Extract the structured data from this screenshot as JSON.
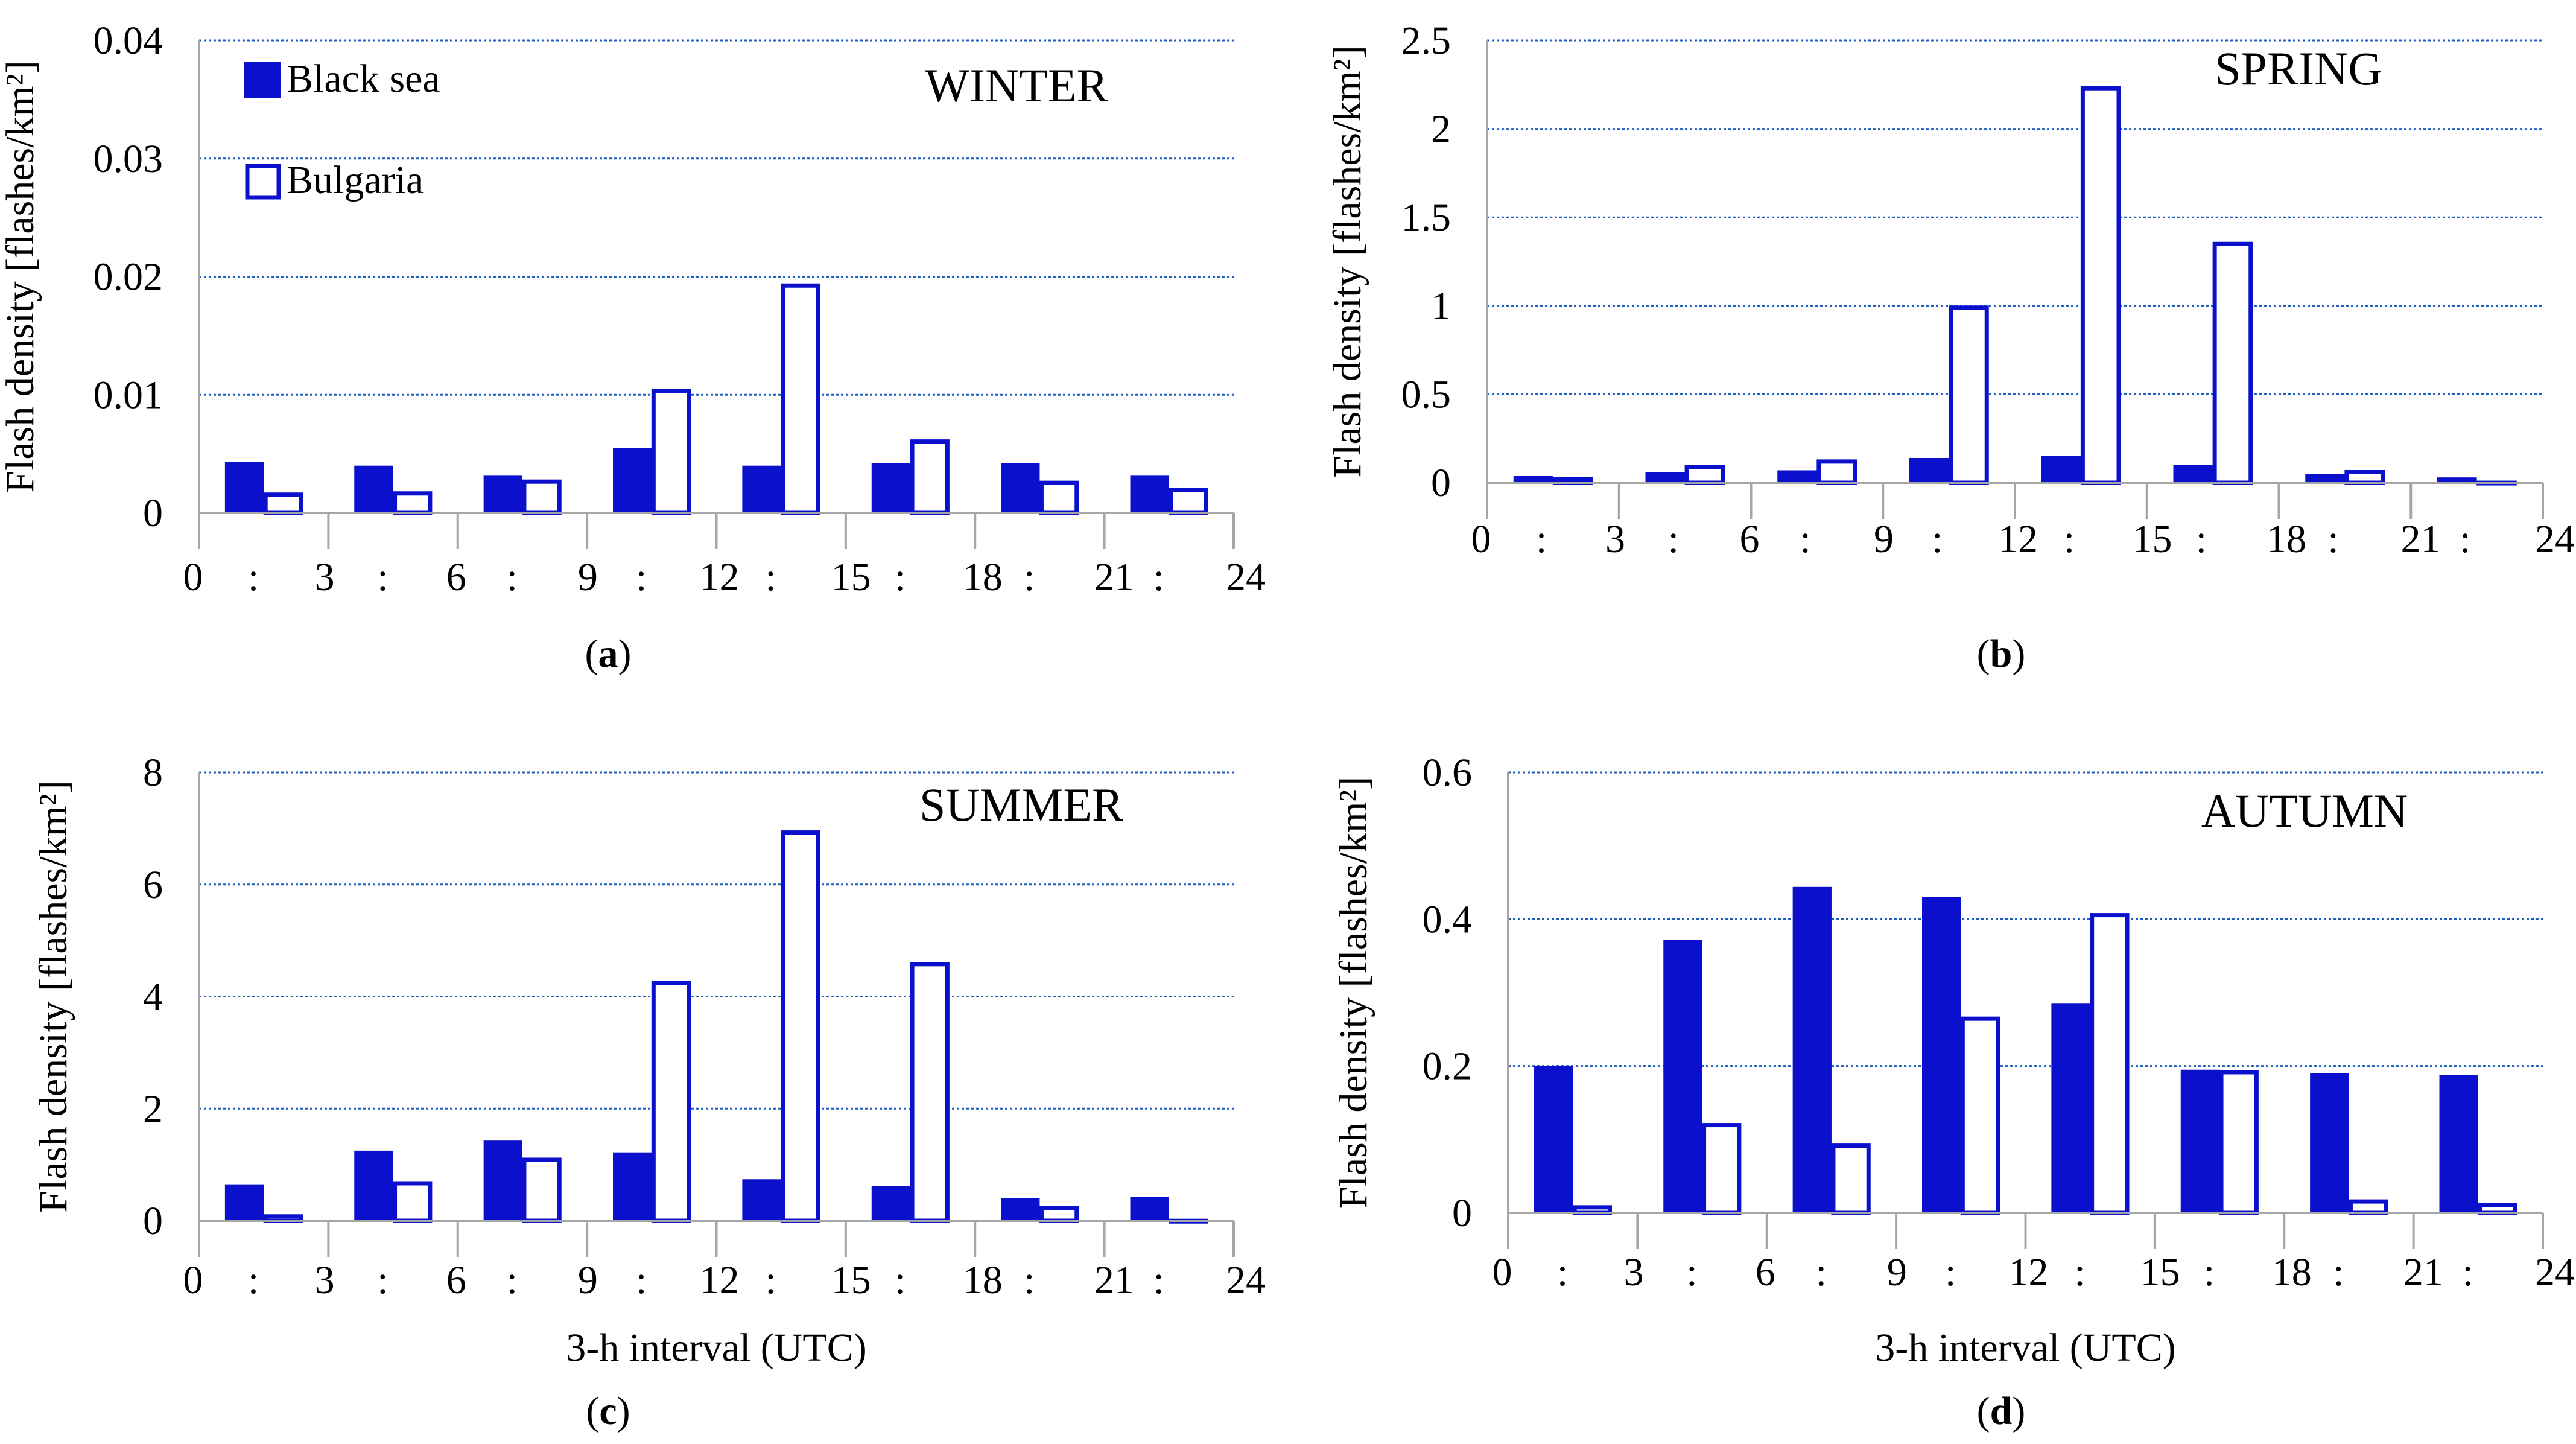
{
  "colors": {
    "black_sea": "#0b10cc",
    "bulgaria_fill": "#ffffff",
    "bulgaria_stroke": "#0b10cc",
    "grid": "#1f5fbf",
    "axis": "#a6a6a6"
  },
  "legend": {
    "black_sea": "Black sea",
    "bulgaria": "Bulgaria"
  },
  "chart_data": [
    {
      "id": "a",
      "type": "bar",
      "season": "WINTER",
      "ylabel": "Flash density [flashes/km²]",
      "xlabel": "",
      "caption_letter": "a",
      "yticks": [
        "0",
        "0.01",
        "0.02",
        "0.03",
        "0.04"
      ],
      "ylim": [
        0,
        0.04
      ],
      "xticks": [
        "0",
        "3",
        "6",
        "9",
        "12",
        "15",
        "18",
        "21",
        "24"
      ],
      "series": [
        {
          "name": "Black sea",
          "values": [
            0.0043,
            0.004,
            0.0032,
            0.0055,
            0.004,
            0.0042,
            0.0042,
            0.0032
          ]
        },
        {
          "name": "Bulgaria",
          "values": [
            0.0017,
            0.0018,
            0.0028,
            0.0105,
            0.0194,
            0.0062,
            0.0027,
            0.0021
          ]
        }
      ]
    },
    {
      "id": "b",
      "type": "bar",
      "season": "SPRING",
      "ylabel": "Flash density [flashes/km²]",
      "xlabel": "",
      "caption_letter": "b",
      "yticks": [
        "0",
        "0.5",
        "1",
        "1.5",
        "2",
        "2.5"
      ],
      "ylim": [
        0,
        2.5
      ],
      "xticks": [
        "0",
        "3",
        "6",
        "9",
        "12",
        "15",
        "18",
        "21",
        "24"
      ],
      "series": [
        {
          "name": "Black sea",
          "values": [
            0.04,
            0.06,
            0.07,
            0.14,
            0.15,
            0.1,
            0.05,
            0.03
          ]
        },
        {
          "name": "Bulgaria",
          "values": [
            0.03,
            0.1,
            0.13,
            1.0,
            2.24,
            1.36,
            0.07,
            0.01
          ]
        }
      ]
    },
    {
      "id": "c",
      "type": "bar",
      "season": "SUMMER",
      "ylabel": "Flash density [flashes/km²]",
      "xlabel": "3-h interval (UTC)",
      "caption_letter": "c",
      "yticks": [
        "0",
        "2",
        "4",
        "6",
        "8"
      ],
      "ylim": [
        0,
        8
      ],
      "xticks": [
        "0",
        "3",
        "6",
        "9",
        "12",
        "15",
        "18",
        "21",
        "24"
      ],
      "series": [
        {
          "name": "Black sea",
          "values": [
            0.65,
            1.25,
            1.43,
            1.22,
            0.74,
            0.62,
            0.4,
            0.42
          ]
        },
        {
          "name": "Bulgaria",
          "values": [
            0.11,
            0.7,
            1.12,
            4.28,
            6.96,
            4.61,
            0.26,
            0.03
          ]
        }
      ]
    },
    {
      "id": "d",
      "type": "bar",
      "season": "AUTUMN",
      "ylabel": "Flash density [flashes/km²]",
      "xlabel": "3-h interval (UTC)",
      "caption_letter": "d",
      "yticks": [
        "0",
        "0.2",
        "0.4",
        "0.6"
      ],
      "ylim": [
        0,
        0.6
      ],
      "xticks": [
        "0",
        "3",
        "6",
        "9",
        "12",
        "15",
        "18",
        "21",
        "24"
      ],
      "series": [
        {
          "name": "Black sea",
          "values": [
            0.2,
            0.372,
            0.444,
            0.43,
            0.285,
            0.195,
            0.19,
            0.188
          ]
        },
        {
          "name": "Bulgaria",
          "values": [
            0.01,
            0.122,
            0.094,
            0.267,
            0.408,
            0.194,
            0.018,
            0.013
          ]
        }
      ]
    }
  ]
}
